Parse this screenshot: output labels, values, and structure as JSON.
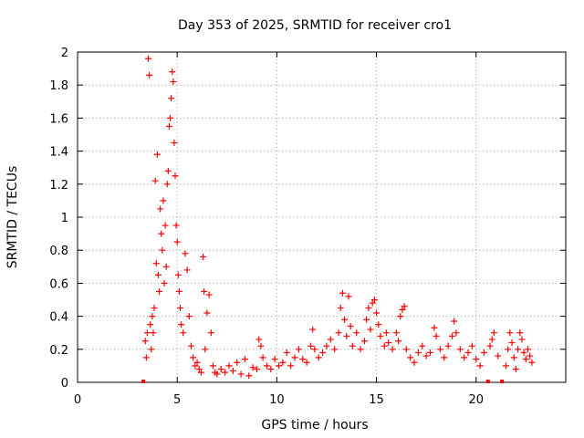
{
  "chart_data": {
    "type": "scatter",
    "title": "Day 353 of 2025, SRMTID for receiver cro1",
    "xlabel": "GPS time / hours",
    "ylabel": "SRMTID / TECUs",
    "xlim": [
      0,
      24.5
    ],
    "ylim": [
      0,
      2
    ],
    "xticks": [
      0,
      5,
      10,
      15,
      20
    ],
    "xtick_labels": [
      "0",
      "5",
      "10",
      "15",
      "20"
    ],
    "yticks": [
      0,
      0.2,
      0.4,
      0.6,
      0.8,
      1,
      1.2,
      1.4,
      1.6,
      1.8,
      2
    ],
    "ytick_labels": [
      "0",
      "0.2",
      "0.4",
      "0.6",
      "0.8",
      "1",
      "1.2",
      "1.4",
      "1.6",
      "1.8",
      "2"
    ],
    "grid": true,
    "marker": "plus",
    "marker_color": "#ff0000",
    "series": [
      {
        "name": "cro1",
        "points": [
          [
            3.3,
            0.0
          ],
          [
            3.4,
            0.25
          ],
          [
            3.45,
            0.15
          ],
          [
            3.5,
            0.3
          ],
          [
            3.55,
            1.96
          ],
          [
            3.6,
            1.86
          ],
          [
            3.65,
            0.35
          ],
          [
            3.7,
            0.2
          ],
          [
            3.75,
            0.4
          ],
          [
            3.8,
            0.3
          ],
          [
            3.85,
            0.45
          ],
          [
            3.9,
            1.22
          ],
          [
            3.95,
            0.72
          ],
          [
            4.0,
            1.38
          ],
          [
            4.05,
            0.65
          ],
          [
            4.1,
            0.55
          ],
          [
            4.15,
            1.05
          ],
          [
            4.2,
            0.9
          ],
          [
            4.25,
            0.8
          ],
          [
            4.3,
            1.1
          ],
          [
            4.35,
            0.6
          ],
          [
            4.4,
            0.95
          ],
          [
            4.45,
            0.7
          ],
          [
            4.5,
            1.2
          ],
          [
            4.55,
            1.28
          ],
          [
            4.6,
            1.55
          ],
          [
            4.65,
            1.6
          ],
          [
            4.7,
            1.72
          ],
          [
            4.75,
            1.88
          ],
          [
            4.8,
            1.82
          ],
          [
            4.85,
            1.45
          ],
          [
            4.9,
            1.25
          ],
          [
            4.95,
            0.95
          ],
          [
            5.0,
            0.85
          ],
          [
            5.05,
            0.65
          ],
          [
            5.1,
            0.55
          ],
          [
            5.15,
            0.45
          ],
          [
            5.2,
            0.35
          ],
          [
            5.3,
            0.3
          ],
          [
            5.4,
            0.78
          ],
          [
            5.5,
            0.68
          ],
          [
            5.6,
            0.4
          ],
          [
            5.7,
            0.22
          ],
          [
            5.8,
            0.15
          ],
          [
            5.9,
            0.1
          ],
          [
            6.0,
            0.12
          ],
          [
            6.1,
            0.08
          ],
          [
            6.2,
            0.06
          ],
          [
            6.3,
            0.76
          ],
          [
            6.35,
            0.55
          ],
          [
            6.4,
            0.2
          ],
          [
            6.5,
            0.42
          ],
          [
            6.6,
            0.53
          ],
          [
            6.7,
            0.3
          ],
          [
            6.8,
            0.1
          ],
          [
            6.9,
            0.06
          ],
          [
            7.0,
            0.05
          ],
          [
            7.2,
            0.08
          ],
          [
            7.4,
            0.06
          ],
          [
            7.6,
            0.1
          ],
          [
            7.8,
            0.07
          ],
          [
            8.0,
            0.12
          ],
          [
            8.2,
            0.05
          ],
          [
            8.4,
            0.14
          ],
          [
            8.6,
            0.04
          ],
          [
            8.8,
            0.09
          ],
          [
            9.0,
            0.08
          ],
          [
            9.1,
            0.26
          ],
          [
            9.2,
            0.22
          ],
          [
            9.3,
            0.15
          ],
          [
            9.5,
            0.1
          ],
          [
            9.7,
            0.08
          ],
          [
            9.9,
            0.14
          ],
          [
            10.1,
            0.1
          ],
          [
            10.3,
            0.12
          ],
          [
            10.5,
            0.18
          ],
          [
            10.7,
            0.1
          ],
          [
            10.9,
            0.15
          ],
          [
            11.1,
            0.2
          ],
          [
            11.3,
            0.14
          ],
          [
            11.5,
            0.12
          ],
          [
            11.7,
            0.22
          ],
          [
            11.8,
            0.32
          ],
          [
            11.9,
            0.2
          ],
          [
            12.1,
            0.15
          ],
          [
            12.3,
            0.18
          ],
          [
            12.5,
            0.22
          ],
          [
            12.7,
            0.26
          ],
          [
            12.9,
            0.2
          ],
          [
            13.1,
            0.3
          ],
          [
            13.2,
            0.45
          ],
          [
            13.3,
            0.54
          ],
          [
            13.4,
            0.38
          ],
          [
            13.5,
            0.28
          ],
          [
            13.6,
            0.52
          ],
          [
            13.7,
            0.34
          ],
          [
            13.8,
            0.22
          ],
          [
            14.0,
            0.3
          ],
          [
            14.2,
            0.2
          ],
          [
            14.4,
            0.25
          ],
          [
            14.5,
            0.38
          ],
          [
            14.6,
            0.45
          ],
          [
            14.7,
            0.32
          ],
          [
            14.8,
            0.48
          ],
          [
            14.9,
            0.5
          ],
          [
            15.0,
            0.42
          ],
          [
            15.1,
            0.35
          ],
          [
            15.2,
            0.28
          ],
          [
            15.4,
            0.22
          ],
          [
            15.5,
            0.3
          ],
          [
            15.6,
            0.24
          ],
          [
            15.8,
            0.2
          ],
          [
            16.0,
            0.3
          ],
          [
            16.1,
            0.25
          ],
          [
            16.2,
            0.4
          ],
          [
            16.3,
            0.44
          ],
          [
            16.4,
            0.46
          ],
          [
            16.5,
            0.2
          ],
          [
            16.7,
            0.15
          ],
          [
            16.9,
            0.12
          ],
          [
            17.1,
            0.18
          ],
          [
            17.3,
            0.22
          ],
          [
            17.5,
            0.16
          ],
          [
            17.7,
            0.18
          ],
          [
            17.9,
            0.33
          ],
          [
            18.0,
            0.28
          ],
          [
            18.2,
            0.2
          ],
          [
            18.4,
            0.15
          ],
          [
            18.6,
            0.22
          ],
          [
            18.8,
            0.28
          ],
          [
            18.9,
            0.37
          ],
          [
            19.0,
            0.3
          ],
          [
            19.2,
            0.2
          ],
          [
            19.4,
            0.15
          ],
          [
            19.6,
            0.18
          ],
          [
            19.8,
            0.22
          ],
          [
            20.0,
            0.14
          ],
          [
            20.2,
            0.1
          ],
          [
            20.4,
            0.18
          ],
          [
            20.6,
            0.0
          ],
          [
            20.7,
            0.22
          ],
          [
            20.8,
            0.26
          ],
          [
            20.9,
            0.3
          ],
          [
            21.1,
            0.16
          ],
          [
            21.3,
            0.0
          ],
          [
            21.5,
            0.1
          ],
          [
            21.6,
            0.2
          ],
          [
            21.7,
            0.3
          ],
          [
            21.8,
            0.24
          ],
          [
            21.9,
            0.15
          ],
          [
            22.0,
            0.08
          ],
          [
            22.1,
            0.2
          ],
          [
            22.2,
            0.3
          ],
          [
            22.3,
            0.26
          ],
          [
            22.4,
            0.18
          ],
          [
            22.5,
            0.14
          ],
          [
            22.6,
            0.2
          ],
          [
            22.7,
            0.16
          ],
          [
            22.8,
            0.12
          ]
        ]
      }
    ]
  }
}
